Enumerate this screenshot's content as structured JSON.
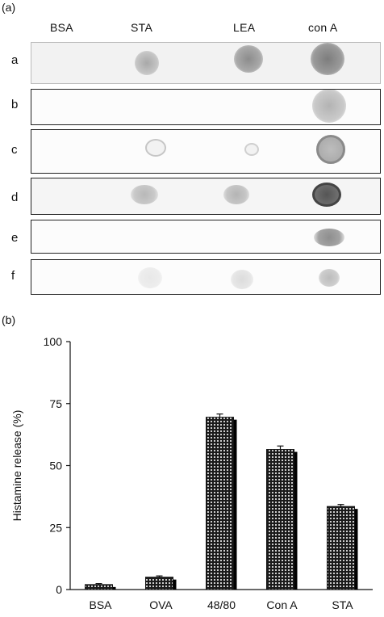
{
  "panel_a": {
    "label": "(a)",
    "columns": [
      "BSA",
      "STA",
      "LEA",
      "con A"
    ],
    "rows": [
      "a",
      "b",
      "c",
      "d",
      "e",
      "f"
    ]
  },
  "panel_b": {
    "label": "(b)"
  },
  "chart_data": {
    "type": "bar",
    "categories": [
      "BSA",
      "OVA",
      "48/80",
      "Con A",
      "STA"
    ],
    "values": [
      2,
      5,
      69.5,
      56.5,
      33.5
    ],
    "errors": [
      0.4,
      0.5,
      1.3,
      1.4,
      0.8
    ],
    "title": "",
    "xlabel": "",
    "ylabel": "Histamine release (%)",
    "ylim": [
      0,
      100
    ],
    "yticks": [
      0,
      25,
      50,
      75,
      100
    ],
    "grid": false
  }
}
